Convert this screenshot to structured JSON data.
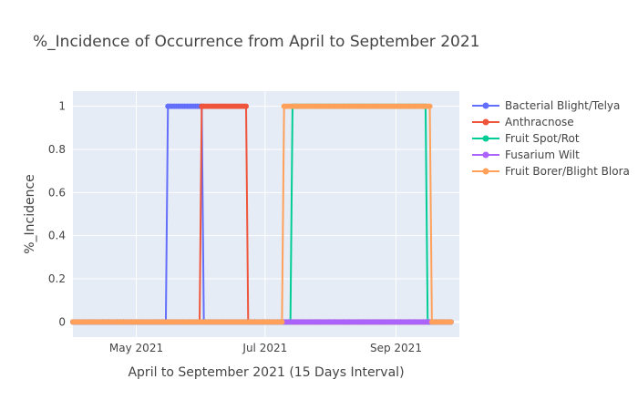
{
  "chart_data": {
    "type": "line",
    "title": "%_Incidence of Occurrence from April to September 2021",
    "xlabel": "April to September 2021 (15 Days Interval)",
    "ylabel": "%_Incidence",
    "x_range": [
      "2021-04-01",
      "2021-10-01"
    ],
    "ylim": [
      -0.07,
      1.07
    ],
    "x_ticks": [
      {
        "date": "2021-05-01",
        "label": "May 2021"
      },
      {
        "date": "2021-07-01",
        "label": "Jul 2021"
      },
      {
        "date": "2021-09-01",
        "label": "Sep 2021"
      }
    ],
    "y_ticks": [
      {
        "value": 0,
        "label": "0"
      },
      {
        "value": 0.2,
        "label": "0.2"
      },
      {
        "value": 0.4,
        "label": "0.4"
      },
      {
        "value": 0.6,
        "label": "0.6"
      },
      {
        "value": 0.8,
        "label": "0.8"
      },
      {
        "value": 1,
        "label": "1"
      }
    ],
    "grid": true,
    "legend_position": "right",
    "series": [
      {
        "name": "Bacterial Blight/Telya",
        "color": "#636efa",
        "start": "2021-04-01",
        "end": "2021-09-27",
        "active": [
          [
            "2021-05-16",
            "2021-06-01"
          ]
        ]
      },
      {
        "name": "Anthracnose",
        "color": "#ef553b",
        "start": "2021-04-01",
        "end": "2021-09-27",
        "active": [
          [
            "2021-06-01",
            "2021-06-22"
          ]
        ]
      },
      {
        "name": "Fruit Spot/Rot",
        "color": "#00cc96",
        "start": "2021-04-01",
        "end": "2021-09-27",
        "active": [
          [
            "2021-07-14",
            "2021-09-15"
          ]
        ]
      },
      {
        "name": "Fusarium Wilt",
        "color": "#ab63fa",
        "start": "2021-04-01",
        "end": "2021-09-27",
        "active": []
      },
      {
        "name": "Fruit Borer/Blight Blora",
        "color": "#FFA15A",
        "start": "2021-04-01",
        "end": "2021-09-27",
        "active": [
          [
            "2021-07-10",
            "2021-09-17"
          ]
        ]
      }
    ]
  }
}
